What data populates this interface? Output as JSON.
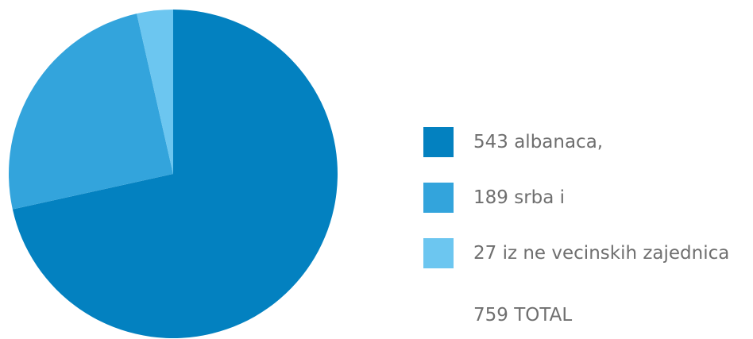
{
  "chart_data": {
    "type": "pie",
    "categories": [
      "543 albanaca,",
      "189 srba i",
      "27 iz ne vecinskih zajednica"
    ],
    "values": [
      543,
      189,
      27
    ],
    "colors": [
      "#0381c0",
      "#33a4dc",
      "#6cc6f0"
    ],
    "title": "",
    "legend_position": "right",
    "start": "top",
    "direction": "clockwise"
  },
  "total_label": "759 TOTAL"
}
